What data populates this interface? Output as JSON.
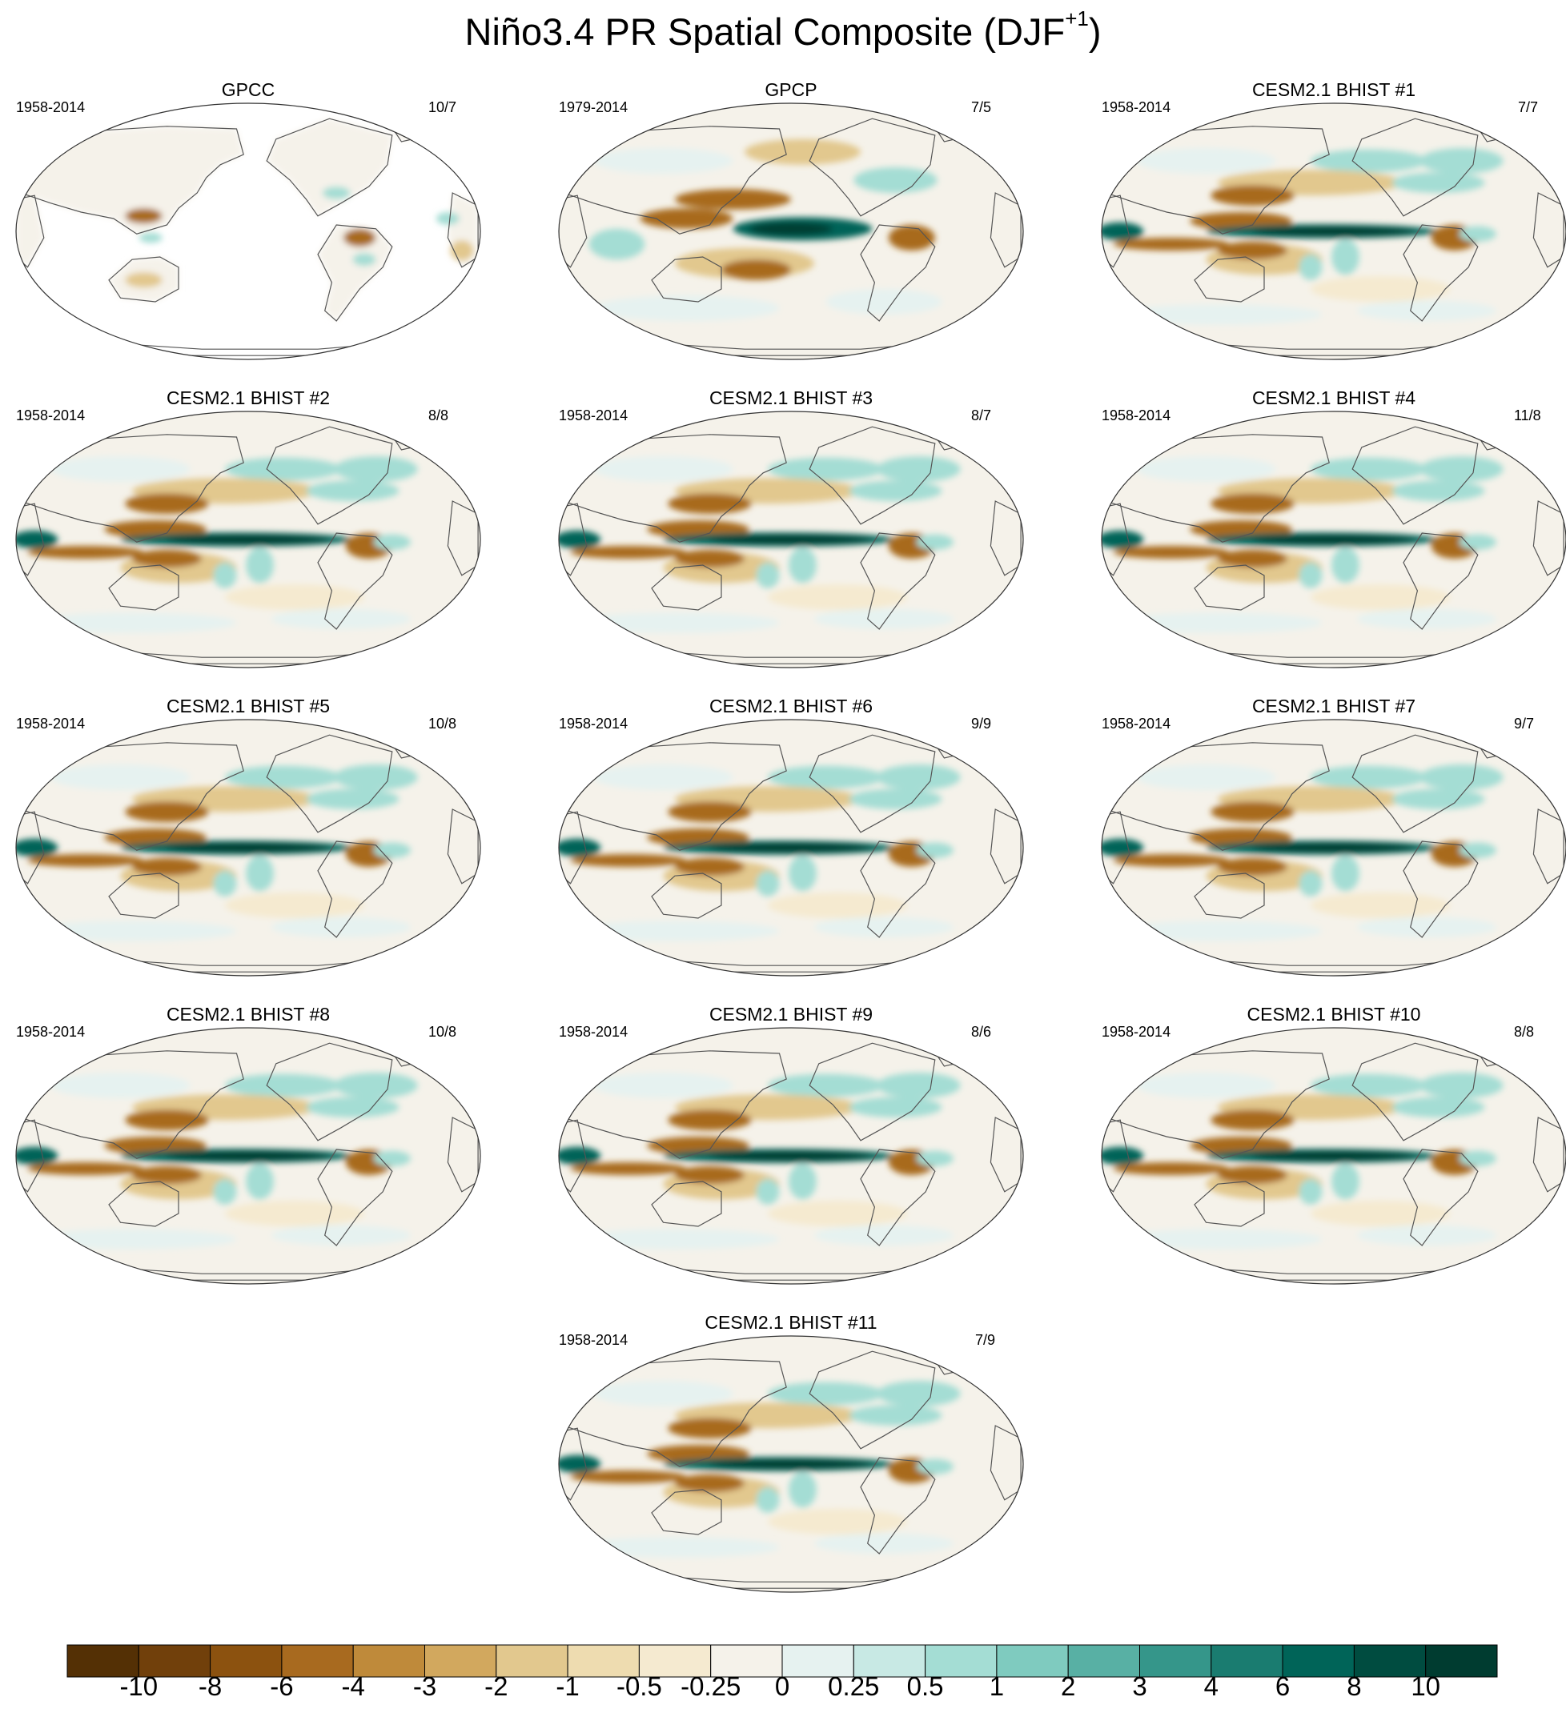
{
  "title": {
    "main": "Niño3.4 PR Spatial Composite (DJF",
    "sup": "+1",
    "close": ")"
  },
  "panels": [
    {
      "title": "GPCC",
      "left": "1958-2014",
      "right": "10/7",
      "land_only": true
    },
    {
      "title": "GPCP",
      "left": "1979-2014",
      "right": "7/5",
      "land_only": false
    },
    {
      "title": "CESM2.1 BHIST #1",
      "left": "1958-2014",
      "right": "7/7",
      "land_only": false
    },
    {
      "title": "CESM2.1 BHIST #2",
      "left": "1958-2014",
      "right": "8/8",
      "land_only": false
    },
    {
      "title": "CESM2.1 BHIST #3",
      "left": "1958-2014",
      "right": "8/7",
      "land_only": false
    },
    {
      "title": "CESM2.1 BHIST #4",
      "left": "1958-2014",
      "right": "11/8",
      "land_only": false
    },
    {
      "title": "CESM2.1 BHIST #5",
      "left": "1958-2014",
      "right": "10/8",
      "land_only": false
    },
    {
      "title": "CESM2.1 BHIST #6",
      "left": "1958-2014",
      "right": "9/9",
      "land_only": false
    },
    {
      "title": "CESM2.1 BHIST #7",
      "left": "1958-2014",
      "right": "9/7",
      "land_only": false
    },
    {
      "title": "CESM2.1 BHIST #8",
      "left": "1958-2014",
      "right": "10/8",
      "land_only": false
    },
    {
      "title": "CESM2.1 BHIST #9",
      "left": "1958-2014",
      "right": "8/6",
      "land_only": false
    },
    {
      "title": "CESM2.1 BHIST #10",
      "left": "1958-2014",
      "right": "8/8",
      "land_only": false
    },
    {
      "title": "CESM2.1 BHIST #11",
      "left": "1958-2014",
      "right": "7/9",
      "land_only": false
    }
  ],
  "colorbar": {
    "levels": [
      "-10",
      "-8",
      "-6",
      "-4",
      "-3",
      "-2",
      "-1",
      "-0.5",
      "-0.25",
      "0",
      "0.25",
      "0.5",
      "1",
      "2",
      "3",
      "4",
      "6",
      "8",
      "10"
    ],
    "colors": [
      "#543005",
      "#71400b",
      "#8c520f",
      "#a86a1f",
      "#bf8a3a",
      "#d2a85e",
      "#e2c88e",
      "#eedcb0",
      "#f5ead0",
      "#f5f2ea",
      "#e6f2f0",
      "#c8e9e4",
      "#a4ddd4",
      "#7fcbbf",
      "#58b0a4",
      "#35968a",
      "#1a7c70",
      "#006458",
      "#004c40",
      "#003c30"
    ]
  }
}
